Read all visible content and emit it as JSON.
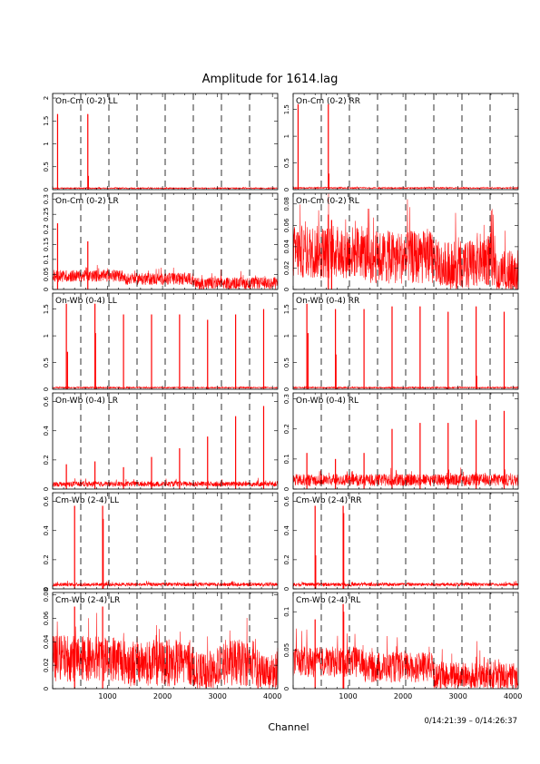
{
  "title": "Amplitude for 1614.lag",
  "xlabel": "Channel",
  "time_range": "0/14:21:39 – 0/14:26:37",
  "colors": {
    "trace": "#ff0000",
    "frame": "#000000"
  },
  "chart_data": {
    "type": "line",
    "xlim": [
      0,
      4096
    ],
    "x_ticks": [
      1000,
      2000,
      3000,
      4000
    ],
    "x_tick_labels": [
      "1000",
      "2000",
      "3000",
      "4000"
    ],
    "dashed_lines_at": [
      512,
      1024,
      1536,
      2048,
      2560,
      3072,
      3584
    ],
    "grid": false,
    "panels": [
      {
        "label": "On-Cm (0-2) LL",
        "ylim": [
          0,
          2.1
        ],
        "y_ticks": [
          0,
          0.5,
          1,
          1.5,
          2
        ],
        "y_tick_labels": [
          "0",
          "0.5",
          "1",
          "1.5",
          "2"
        ],
        "baseline": 0.03,
        "noise": 0.012,
        "spikes": [
          [
            90,
            1.65
          ],
          [
            640,
            1.65
          ],
          [
            650,
            0.3
          ]
        ]
      },
      {
        "label": "On-Cm (0-2) RR",
        "ylim": [
          0,
          1.8
        ],
        "y_ticks": [
          0,
          0.5,
          1,
          1.5
        ],
        "y_tick_labels": [
          "0",
          "0.5",
          "1",
          "1.5"
        ],
        "baseline": 0.03,
        "noise": 0.012,
        "spikes": [
          [
            90,
            1.6
          ],
          [
            640,
            1.6
          ],
          [
            650,
            0.3
          ]
        ]
      },
      {
        "label": "On-Cm (0-2) LR",
        "ylim": [
          0,
          0.32
        ],
        "y_ticks": [
          0,
          0.05,
          0.1,
          0.15,
          0.2,
          0.25,
          0.3
        ],
        "y_tick_labels": [
          "0",
          "0.05",
          "0.1",
          "0.15",
          "0.2",
          "0.25",
          "0.3"
        ],
        "baseline": 0.025,
        "noise": 0.02,
        "segments": [
          [
            0,
            1300,
            0.045
          ],
          [
            1300,
            2560,
            0.035
          ],
          [
            2560,
            4096,
            0.02
          ]
        ],
        "spikes": [
          [
            90,
            0.22
          ],
          [
            640,
            0.16
          ]
        ]
      },
      {
        "label": "On-Cm (0-2) RL",
        "ylim": [
          0,
          0.09
        ],
        "y_ticks": [
          0,
          0.02,
          0.04,
          0.06,
          0.08
        ],
        "y_tick_labels": [
          "0",
          "0.02",
          "0.04",
          "0.06",
          "0.08"
        ],
        "baseline": 0.03,
        "noise": 0.025,
        "segments": [
          [
            0,
            1300,
            0.035
          ],
          [
            1300,
            2560,
            0.03
          ],
          [
            2560,
            3300,
            0.02
          ],
          [
            3300,
            3700,
            0.028
          ],
          [
            3700,
            4096,
            0.012
          ]
        ],
        "spikes": [
          [
            640,
            0.07
          ],
          [
            700,
            0.065
          ]
        ]
      },
      {
        "label": "On-Wb (0-4) LL",
        "ylim": [
          0,
          1.8
        ],
        "y_ticks": [
          0,
          0.5,
          1,
          1.5
        ],
        "y_tick_labels": [
          "0",
          "0.5",
          "1",
          "1.5"
        ],
        "baseline": 0.03,
        "noise": 0.012,
        "spikes": [
          [
            250,
            1.6
          ],
          [
            270,
            0.7
          ],
          [
            770,
            1.6
          ],
          [
            780,
            1.05
          ],
          [
            1290,
            1.4
          ],
          [
            1800,
            1.4
          ],
          [
            2310,
            1.4
          ],
          [
            2820,
            1.3
          ],
          [
            3330,
            1.4
          ],
          [
            3840,
            1.5
          ]
        ]
      },
      {
        "label": "On-Wb (0-4) RR",
        "ylim": [
          0,
          1.8
        ],
        "y_ticks": [
          0,
          0.5,
          1,
          1.5
        ],
        "y_tick_labels": [
          "0",
          "0.5",
          "1",
          "1.5"
        ],
        "baseline": 0.03,
        "noise": 0.012,
        "spikes": [
          [
            250,
            1.6
          ],
          [
            270,
            1.05
          ],
          [
            770,
            1.5
          ],
          [
            780,
            0.65
          ],
          [
            1290,
            1.5
          ],
          [
            1800,
            1.55
          ],
          [
            2310,
            1.55
          ],
          [
            2820,
            1.45
          ],
          [
            3330,
            1.55
          ],
          [
            3340,
            0.25
          ],
          [
            3840,
            1.45
          ]
        ]
      },
      {
        "label": "On-Wb (0-4) LR",
        "ylim": [
          0,
          0.66
        ],
        "y_ticks": [
          0,
          0.2,
          0.4,
          0.6
        ],
        "y_tick_labels": [
          "0",
          "0.2",
          "0.4",
          "0.6"
        ],
        "baseline": 0.035,
        "noise": 0.018,
        "spikes": [
          [
            250,
            0.17
          ],
          [
            770,
            0.19
          ],
          [
            1290,
            0.15
          ],
          [
            1800,
            0.22
          ],
          [
            2310,
            0.28
          ],
          [
            2820,
            0.36
          ],
          [
            3330,
            0.5
          ],
          [
            3840,
            0.57
          ]
        ]
      },
      {
        "label": "On-Wb (0-4) RL",
        "ylim": [
          0,
          0.32
        ],
        "y_ticks": [
          0,
          0.1,
          0.2,
          0.3
        ],
        "y_tick_labels": [
          "0",
          "0.1",
          "0.2",
          "0.3"
        ],
        "baseline": 0.03,
        "noise": 0.02,
        "spikes": [
          [
            250,
            0.12
          ],
          [
            770,
            0.1
          ],
          [
            1290,
            0.12
          ],
          [
            1800,
            0.2
          ],
          [
            2310,
            0.22
          ],
          [
            2820,
            0.22
          ],
          [
            3330,
            0.23
          ],
          [
            3840,
            0.26
          ]
        ]
      },
      {
        "label": "Cm-Wb (2-4) LL",
        "ylim": [
          0,
          0.66
        ],
        "y_ticks": [
          0,
          0.2,
          0.4,
          0.6
        ],
        "y_tick_labels": [
          "0",
          "0.2",
          "0.4",
          "0.6"
        ],
        "baseline": 0.03,
        "noise": 0.012,
        "spikes": [
          [
            400,
            0.57
          ],
          [
            910,
            0.57
          ],
          [
            920,
            0.48
          ]
        ]
      },
      {
        "label": "Cm-Wb (2-4) RR",
        "ylim": [
          0,
          0.66
        ],
        "y_ticks": [
          0,
          0.2,
          0.4,
          0.6
        ],
        "y_tick_labels": [
          "0",
          "0.2",
          "0.4",
          "0.6"
        ],
        "baseline": 0.03,
        "noise": 0.012,
        "spikes": [
          [
            400,
            0.57
          ],
          [
            410,
            0.23
          ],
          [
            910,
            0.57
          ],
          [
            920,
            0.52
          ]
        ]
      },
      {
        "label": "Cm-Wb (2-4) LR",
        "ylim": [
          0,
          0.082
        ],
        "y_ticks": [
          0,
          0.02,
          0.04,
          0.06,
          0.08
        ],
        "y_tick_labels": [
          "0",
          "0.02",
          "0.04",
          "0.06",
          "0.08"
        ],
        "baseline": 0.022,
        "noise": 0.02,
        "segments": [
          [
            0,
            1300,
            0.026
          ],
          [
            1300,
            2560,
            0.022
          ],
          [
            2560,
            3000,
            0.01
          ],
          [
            3000,
            3700,
            0.022
          ],
          [
            3700,
            4096,
            0.012
          ]
        ],
        "spikes": [
          [
            400,
            0.07
          ],
          [
            910,
            0.07
          ]
        ]
      },
      {
        "label": "Cm-Wb (2-4) RL",
        "ylim": [
          0,
          0.125
        ],
        "y_ticks": [
          0,
          0.05,
          0.1
        ],
        "y_tick_labels": [
          "0",
          "0.05",
          "0.1"
        ],
        "baseline": 0.03,
        "noise": 0.02,
        "segments": [
          [
            0,
            1300,
            0.035
          ],
          [
            1300,
            2560,
            0.028
          ],
          [
            2560,
            4096,
            0.015
          ]
        ],
        "spikes": [
          [
            400,
            0.09
          ],
          [
            910,
            0.11
          ],
          [
            920,
            0.1
          ]
        ]
      }
    ]
  }
}
